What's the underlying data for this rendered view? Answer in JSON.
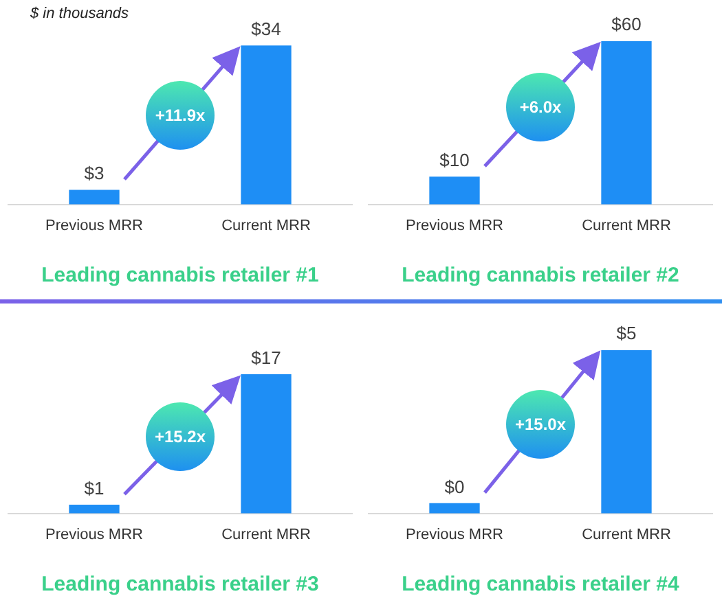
{
  "chart_data": [
    {
      "type": "bar",
      "subtitle": "$ in thousands",
      "categories": [
        "Previous MRR",
        "Current MRR"
      ],
      "values": [
        3,
        34
      ],
      "value_labels": [
        "$3",
        "$34"
      ],
      "color": "#1e8ef5",
      "xlabel": "Leading cannabis retailer #1",
      "annotations": [
        "+11.9x"
      ]
    },
    {
      "type": "bar",
      "categories": [
        "Previous MRR",
        "Current MRR"
      ],
      "values": [
        10,
        60
      ],
      "value_labels": [
        "$10",
        "$60"
      ],
      "color": "#1e8ef5",
      "xlabel": "Leading cannabis retailer #2",
      "annotations": [
        "+6.0x"
      ]
    },
    {
      "type": "bar",
      "categories": [
        "Previous MRR",
        "Current MRR"
      ],
      "values": [
        1,
        17
      ],
      "value_labels": [
        "$1",
        "$17"
      ],
      "color": "#1e8ef5",
      "xlabel": "Leading cannabis retailer #3",
      "annotations": [
        "+15.2x"
      ]
    },
    {
      "type": "bar",
      "categories": [
        "Previous MRR",
        "Current MRR"
      ],
      "values": [
        0.3,
        5
      ],
      "value_labels": [
        "$0",
        "$5"
      ],
      "color": "#1e8ef5",
      "xlabel": "Leading cannabis retailer #4",
      "annotations": [
        "+15.0x"
      ]
    }
  ]
}
